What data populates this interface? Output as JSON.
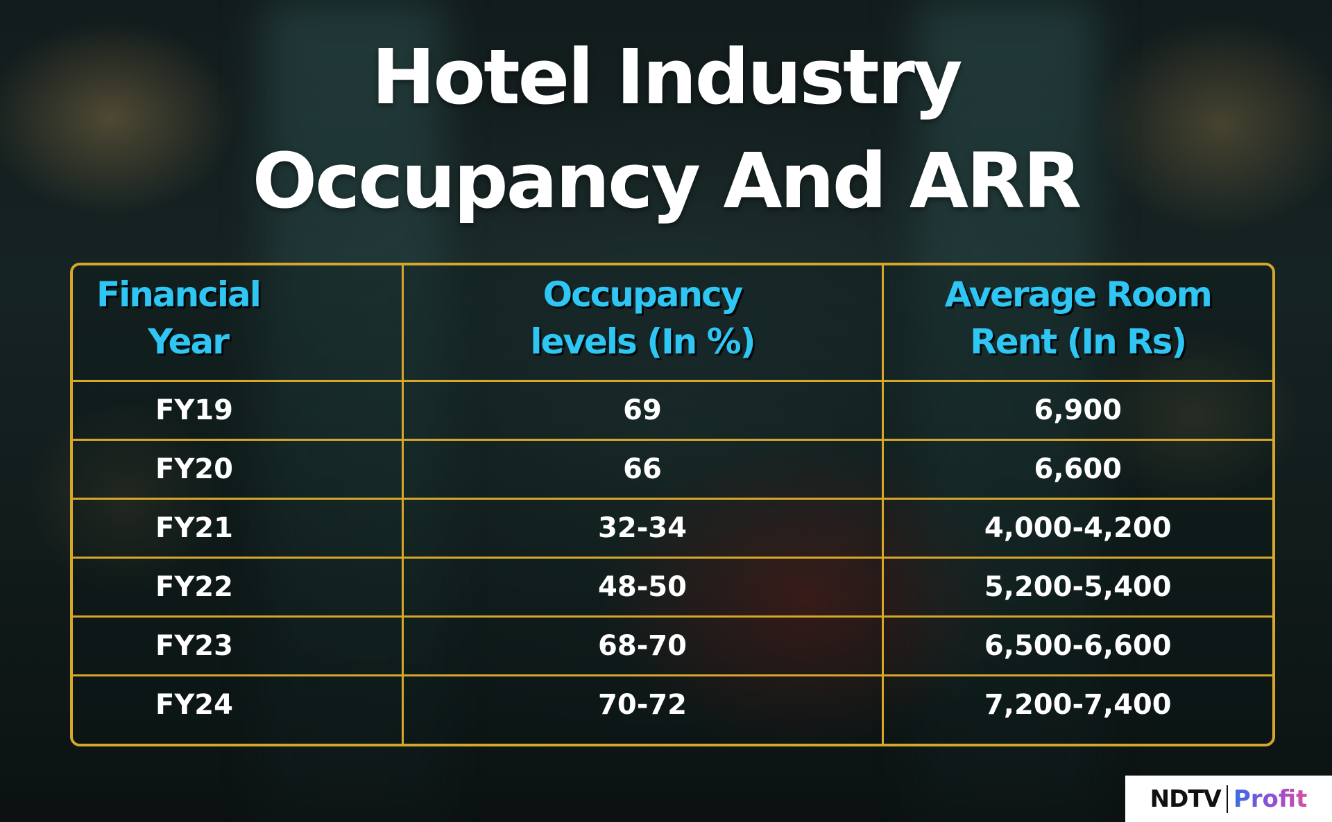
{
  "title_lines": [
    "Hotel Industry",
    "Occupancy And ARR"
  ],
  "chart_data": {
    "type": "table",
    "title": "Hotel Industry Occupancy And ARR",
    "columns": [
      {
        "lines": [
          "Financial",
          "Year"
        ]
      },
      {
        "lines": [
          "Occupancy",
          "levels (In %)"
        ]
      },
      {
        "lines": [
          "Average Room",
          "Rent (In Rs)"
        ]
      }
    ],
    "rows": [
      [
        "FY19",
        "69",
        "6,900"
      ],
      [
        "FY20",
        "66",
        "6,600"
      ],
      [
        "FY21",
        "32-34",
        "4,000-4,200"
      ],
      [
        "FY22",
        "48-50",
        "5,200-5,400"
      ],
      [
        "FY23",
        "68-70",
        "6,500-6,600"
      ],
      [
        "FY24",
        "70-72",
        "7,200-7,400"
      ]
    ]
  },
  "brand": {
    "left": "NDTV",
    "right": "Profit"
  },
  "colors": {
    "header_text": "#2fc6f4",
    "grid_lines": "#d7a72a",
    "cell_text": "#ffffff",
    "title_text": "#ffffff"
  }
}
